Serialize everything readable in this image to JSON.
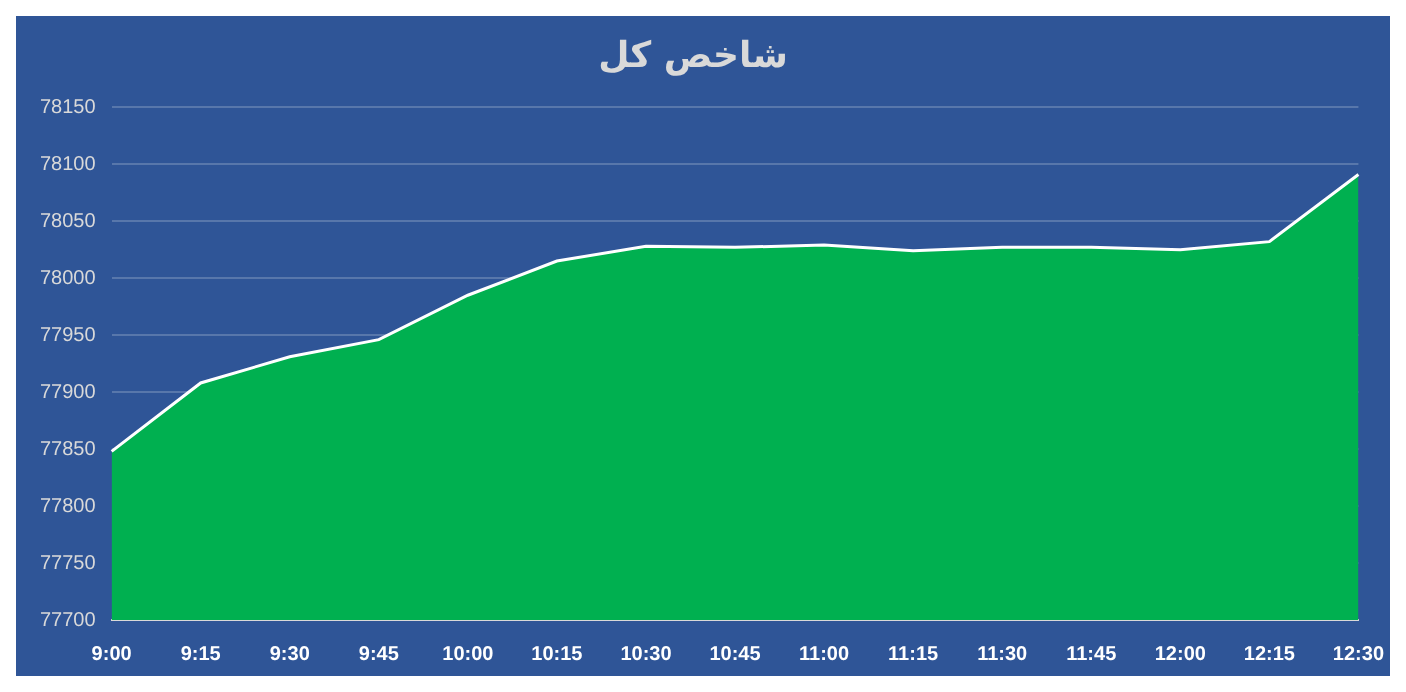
{
  "chart_data": {
    "type": "area",
    "title": "شاخص کل",
    "categories": [
      "9:00",
      "9:15",
      "9:30",
      "9:45",
      "10:00",
      "10:15",
      "10:30",
      "10:45",
      "11:00",
      "11:15",
      "11:30",
      "11:45",
      "12:00",
      "12:15",
      "12:30"
    ],
    "series": [
      {
        "color": "#00b050",
        "values": [
          77848,
          77908,
          77931,
          77946,
          77985,
          78015,
          78028,
          78027,
          78029,
          78024,
          78027,
          78027,
          78025,
          78032,
          78091
        ]
      }
    ],
    "ylim": [
      77700,
      78150
    ],
    "yticks": [
      77700,
      77750,
      77800,
      77850,
      77900,
      77950,
      78000,
      78050,
      78100,
      78150
    ],
    "grid": "y",
    "legend": false
  }
}
